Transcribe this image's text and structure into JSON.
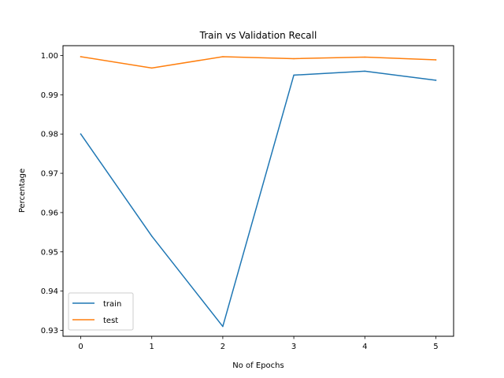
{
  "chart_data": {
    "type": "line",
    "title": "Train vs Validation Recall",
    "xlabel": "No of Epochs",
    "ylabel": "Percentage",
    "x": [
      0,
      1,
      2,
      3,
      4,
      5
    ],
    "xticks": [
      "0",
      "1",
      "2",
      "3",
      "4",
      "5"
    ],
    "yticks": [
      "0.93",
      "0.94",
      "0.95",
      "0.96",
      "0.97",
      "0.98",
      "0.99",
      "1.00"
    ],
    "xlim": [
      -0.25,
      5.25
    ],
    "ylim": [
      0.9285,
      1.0025
    ],
    "grid": false,
    "legend_position": "lower-left",
    "series": [
      {
        "name": "train",
        "color": "#1f77b4",
        "values": [
          0.98,
          0.954,
          0.931,
          0.995,
          0.996,
          0.9937
        ]
      },
      {
        "name": "test",
        "color": "#ff7f0e",
        "values": [
          0.9997,
          0.9968,
          0.9997,
          0.9992,
          0.9996,
          0.9989
        ]
      }
    ]
  }
}
